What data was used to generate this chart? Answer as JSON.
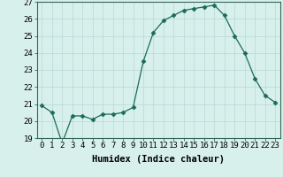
{
  "x": [
    0,
    1,
    2,
    3,
    4,
    5,
    6,
    7,
    8,
    9,
    10,
    11,
    12,
    13,
    14,
    15,
    16,
    17,
    18,
    19,
    20,
    21,
    22,
    23
  ],
  "y": [
    20.9,
    20.5,
    18.7,
    20.3,
    20.3,
    20.1,
    20.4,
    20.4,
    20.5,
    20.8,
    23.5,
    25.2,
    25.9,
    26.2,
    26.5,
    26.6,
    26.7,
    26.8,
    26.2,
    25.0,
    24.0,
    22.5,
    21.5,
    21.1
  ],
  "line_color": "#1a6b5a",
  "marker": "D",
  "marker_size": 2.5,
  "bg_color": "#d8f0ec",
  "grid_color": "#b8d8d4",
  "xlabel": "Humidex (Indice chaleur)",
  "ylim": [
    19,
    27
  ],
  "yticks": [
    19,
    20,
    21,
    22,
    23,
    24,
    25,
    26,
    27
  ],
  "xticks": [
    0,
    1,
    2,
    3,
    4,
    5,
    6,
    7,
    8,
    9,
    10,
    11,
    12,
    13,
    14,
    15,
    16,
    17,
    18,
    19,
    20,
    21,
    22,
    23
  ],
  "xlabel_fontsize": 7.5,
  "tick_fontsize": 6.5,
  "axis_color": "#336655"
}
